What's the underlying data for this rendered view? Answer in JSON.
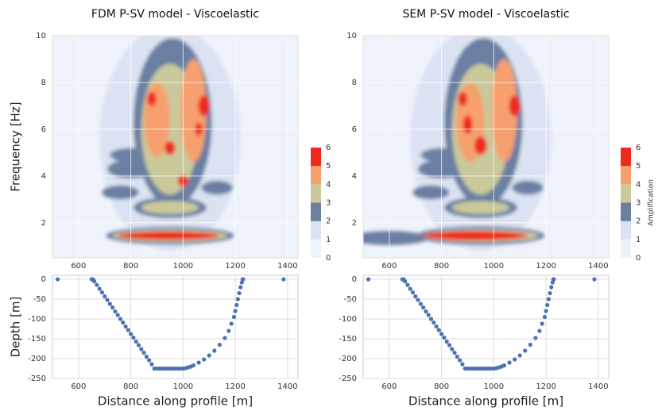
{
  "chart_data": [
    {
      "type": "heatmap",
      "title": "FDM P-SV model - Viscoelastic",
      "ylabel": "Frequency [Hz]",
      "xlim": [
        500,
        1440
      ],
      "ylim": [
        0.5,
        10
      ],
      "xticks": [
        600,
        800,
        1000,
        1200,
        1400
      ],
      "yticks": [
        2,
        4,
        6,
        8,
        10
      ],
      "colorbar": {
        "ticks": [
          0,
          1,
          2,
          3,
          4,
          5,
          6
        ],
        "colors": [
          "#eef2fb",
          "#dbe3f3",
          "#6b7fa2",
          "#c9c99b",
          "#f5a06e",
          "#ee2a1f"
        ]
      },
      "blobs": [
        {
          "x": 950,
          "y": 5.6,
          "w": 270,
          "h": 4.8,
          "level": 1
        },
        {
          "x": 950,
          "y": 1.45,
          "w": 245,
          "h": 0.38,
          "level": 2
        },
        {
          "x": 950,
          "y": 2.65,
          "w": 140,
          "h": 0.45,
          "level": 2
        },
        {
          "x": 760,
          "y": 3.3,
          "w": 70,
          "h": 0.3,
          "level": 2
        },
        {
          "x": 1130,
          "y": 3.5,
          "w": 60,
          "h": 0.3,
          "level": 2
        },
        {
          "x": 800,
          "y": 4.3,
          "w": 90,
          "h": 0.4,
          "level": 2
        },
        {
          "x": 800,
          "y": 4.9,
          "w": 80,
          "h": 0.3,
          "level": 2
        },
        {
          "x": 960,
          "y": 6.3,
          "w": 150,
          "h": 3.6,
          "level": 2
        },
        {
          "x": 950,
          "y": 1.45,
          "w": 220,
          "h": 0.27,
          "level": 3
        },
        {
          "x": 950,
          "y": 2.65,
          "w": 110,
          "h": 0.28,
          "level": 3
        },
        {
          "x": 950,
          "y": 6.0,
          "w": 110,
          "h": 2.8,
          "level": 3
        },
        {
          "x": 900,
          "y": 6.4,
          "w": 50,
          "h": 1.6,
          "level": 4
        },
        {
          "x": 1040,
          "y": 6.8,
          "w": 50,
          "h": 2.2,
          "level": 4
        },
        {
          "x": 945,
          "y": 1.45,
          "w": 195,
          "h": 0.18,
          "level": 5
        },
        {
          "x": 950,
          "y": 5.2,
          "w": 20,
          "h": 0.3,
          "level": 5
        },
        {
          "x": 1000,
          "y": 3.8,
          "w": 20,
          "h": 0.25,
          "level": 5
        },
        {
          "x": 880,
          "y": 7.3,
          "w": 18,
          "h": 0.3,
          "level": 5
        },
        {
          "x": 1080,
          "y": 7.0,
          "w": 22,
          "h": 0.45,
          "level": 5
        },
        {
          "x": 1060,
          "y": 6.0,
          "w": 14,
          "h": 0.3,
          "level": 5
        }
      ]
    },
    {
      "type": "heatmap",
      "title": "SEM P-SV model - Viscoelastic",
      "xlim": [
        500,
        1440
      ],
      "ylim": [
        0.5,
        10
      ],
      "xticks": [
        600,
        800,
        1000,
        1200,
        1400
      ],
      "yticks": [
        2,
        4,
        6,
        8,
        10
      ],
      "colorbar": {
        "ticks": [
          0,
          1,
          2,
          3,
          4,
          5,
          6
        ],
        "colors": [
          "#eef2fb",
          "#dbe3f3",
          "#6b7fa2",
          "#c9c99b",
          "#f5a06e",
          "#ee2a1f"
        ],
        "label": "Amplification"
      },
      "blobs": [
        {
          "x": 950,
          "y": 5.6,
          "w": 270,
          "h": 4.8,
          "level": 1
        },
        {
          "x": 600,
          "y": 1.35,
          "w": 150,
          "h": 0.3,
          "level": 2
        },
        {
          "x": 950,
          "y": 1.45,
          "w": 245,
          "h": 0.4,
          "level": 2
        },
        {
          "x": 950,
          "y": 2.65,
          "w": 140,
          "h": 0.45,
          "level": 2
        },
        {
          "x": 760,
          "y": 3.3,
          "w": 70,
          "h": 0.3,
          "level": 2
        },
        {
          "x": 1130,
          "y": 3.5,
          "w": 60,
          "h": 0.3,
          "level": 2
        },
        {
          "x": 800,
          "y": 4.3,
          "w": 90,
          "h": 0.4,
          "level": 2
        },
        {
          "x": 800,
          "y": 4.9,
          "w": 80,
          "h": 0.3,
          "level": 2
        },
        {
          "x": 960,
          "y": 6.3,
          "w": 150,
          "h": 3.6,
          "level": 2
        },
        {
          "x": 950,
          "y": 1.45,
          "w": 220,
          "h": 0.28,
          "level": 3
        },
        {
          "x": 950,
          "y": 2.65,
          "w": 110,
          "h": 0.28,
          "level": 3
        },
        {
          "x": 950,
          "y": 6.0,
          "w": 110,
          "h": 2.8,
          "level": 3
        },
        {
          "x": 910,
          "y": 6.3,
          "w": 55,
          "h": 1.7,
          "level": 4
        },
        {
          "x": 1040,
          "y": 6.8,
          "w": 50,
          "h": 2.2,
          "level": 4
        },
        {
          "x": 930,
          "y": 1.45,
          "w": 200,
          "h": 0.2,
          "level": 5
        },
        {
          "x": 950,
          "y": 5.3,
          "w": 24,
          "h": 0.4,
          "level": 5
        },
        {
          "x": 900,
          "y": 6.2,
          "w": 18,
          "h": 0.4,
          "level": 5
        },
        {
          "x": 880,
          "y": 7.3,
          "w": 18,
          "h": 0.3,
          "level": 5
        },
        {
          "x": 1080,
          "y": 7.0,
          "w": 22,
          "h": 0.45,
          "level": 5
        }
      ]
    },
    {
      "type": "scatter",
      "ylabel": "Depth [m]",
      "xlabel": "Distance along profile [m]",
      "color": "#4c72b0",
      "xlim": [
        500,
        1440
      ],
      "ylim": [
        -250,
        10
      ],
      "xticks": [
        600,
        800,
        1000,
        1200,
        1400
      ],
      "yticks": [
        0,
        -50,
        -100,
        -150,
        -200,
        -250
      ],
      "x": [
        520,
        650,
        655,
        660,
        670,
        680,
        690,
        700,
        710,
        720,
        730,
        740,
        750,
        760,
        770,
        780,
        790,
        800,
        810,
        820,
        830,
        840,
        850,
        860,
        870,
        880,
        890,
        900,
        910,
        920,
        930,
        940,
        950,
        960,
        970,
        980,
        990,
        1000,
        1010,
        1020,
        1030,
        1040,
        1060,
        1080,
        1100,
        1120,
        1140,
        1160,
        1175,
        1185,
        1195,
        1200,
        1205,
        1210,
        1215,
        1220,
        1225,
        1228,
        1230,
        1385
      ],
      "y": [
        0,
        0,
        0,
        -5,
        -14,
        -24,
        -33,
        -43,
        -52,
        -62,
        -71,
        -81,
        -90,
        -100,
        -109,
        -119,
        -128,
        -138,
        -147,
        -157,
        -166,
        -176,
        -185,
        -195,
        -204,
        -214,
        -225,
        -225,
        -225,
        -225,
        -225,
        -225,
        -225,
        -225,
        -225,
        -225,
        -225,
        -225,
        -224,
        -222,
        -220,
        -217,
        -210,
        -202,
        -192,
        -180,
        -165,
        -148,
        -130,
        -112,
        -95,
        -80,
        -65,
        -50,
        -35,
        -20,
        -8,
        0,
        0,
        0
      ]
    },
    {
      "type": "scatter",
      "xlabel": "Distance along profile [m]",
      "color": "#4c72b0",
      "xlim": [
        500,
        1440
      ],
      "ylim": [
        -250,
        10
      ],
      "xticks": [
        600,
        800,
        1000,
        1200,
        1400
      ],
      "yticks": [
        0,
        -50,
        -100,
        -150,
        -200,
        -250
      ],
      "x": [
        520,
        650,
        655,
        660,
        670,
        680,
        690,
        700,
        710,
        720,
        730,
        740,
        750,
        760,
        770,
        780,
        790,
        800,
        810,
        820,
        830,
        840,
        850,
        860,
        870,
        880,
        890,
        900,
        910,
        920,
        930,
        940,
        950,
        960,
        970,
        980,
        990,
        1000,
        1010,
        1020,
        1030,
        1040,
        1060,
        1080,
        1100,
        1120,
        1140,
        1160,
        1175,
        1185,
        1195,
        1200,
        1205,
        1210,
        1215,
        1220,
        1225,
        1228,
        1230,
        1385
      ],
      "y": [
        0,
        0,
        0,
        -5,
        -14,
        -24,
        -33,
        -43,
        -52,
        -62,
        -71,
        -81,
        -90,
        -100,
        -109,
        -119,
        -128,
        -138,
        -147,
        -157,
        -166,
        -176,
        -185,
        -195,
        -204,
        -214,
        -225,
        -225,
        -225,
        -225,
        -225,
        -225,
        -225,
        -225,
        -225,
        -225,
        -225,
        -225,
        -224,
        -222,
        -220,
        -217,
        -210,
        -202,
        -192,
        -180,
        -165,
        -148,
        -130,
        -112,
        -95,
        -80,
        -65,
        -50,
        -35,
        -20,
        -8,
        0,
        0,
        0
      ]
    }
  ]
}
